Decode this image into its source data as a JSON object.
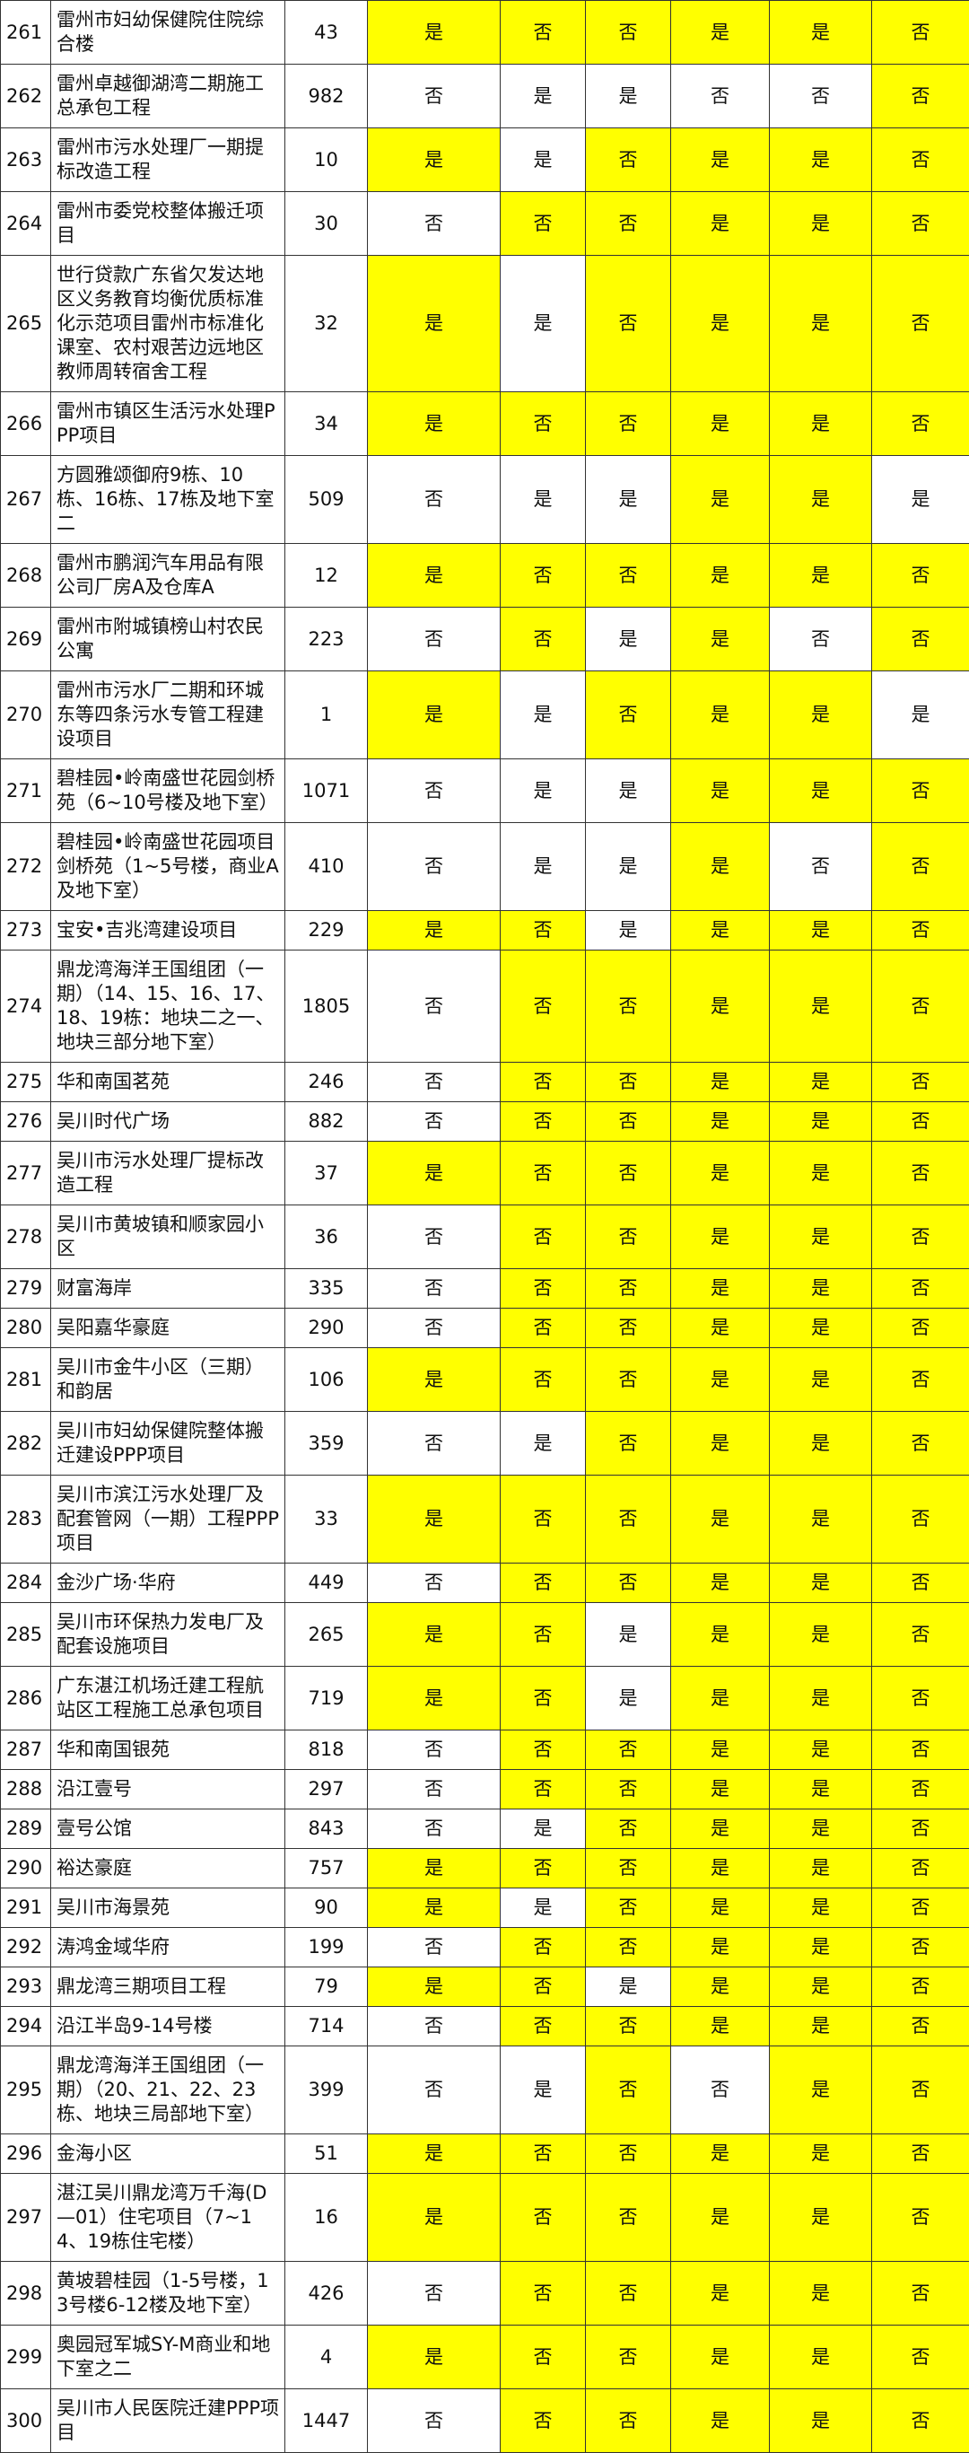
{
  "colors": {
    "highlight": "#ffff00",
    "plain": "#ffffff",
    "border": "#333333"
  },
  "rows": [
    {
      "no": "261",
      "name": "雷州市妇幼保健院住院综合楼",
      "count": "43",
      "vals": [
        "是",
        "否",
        "否",
        "是",
        "是",
        "否"
      ],
      "hl": [
        1,
        1,
        1,
        1,
        1,
        1
      ]
    },
    {
      "no": "262",
      "name": "雷州卓越御湖湾二期施工总承包工程",
      "count": "982",
      "vals": [
        "否",
        "是",
        "是",
        "否",
        "否",
        "否"
      ],
      "hl": [
        0,
        0,
        0,
        0,
        0,
        1
      ]
    },
    {
      "no": "263",
      "name": "雷州市污水处理厂一期提标改造工程",
      "count": "10",
      "vals": [
        "是",
        "是",
        "否",
        "是",
        "是",
        "否"
      ],
      "hl": [
        1,
        0,
        1,
        1,
        1,
        1
      ]
    },
    {
      "no": "264",
      "name": "雷州市委党校整体搬迁项目",
      "count": "30",
      "vals": [
        "否",
        "否",
        "否",
        "是",
        "是",
        "否"
      ],
      "hl": [
        0,
        1,
        1,
        1,
        1,
        1
      ]
    },
    {
      "no": "265",
      "name": "世行贷款广东省欠发达地区义务教育均衡优质标准化示范项目雷州市标准化课室、农村艰苦边远地区教师周转宿舍工程",
      "count": "32",
      "vals": [
        "是",
        "是",
        "否",
        "是",
        "是",
        "否"
      ],
      "hl": [
        1,
        0,
        1,
        1,
        1,
        1
      ]
    },
    {
      "no": "266",
      "name": "雷州市镇区生活污水处理PPP项目",
      "count": "34",
      "vals": [
        "是",
        "否",
        "否",
        "是",
        "是",
        "否"
      ],
      "hl": [
        1,
        1,
        1,
        1,
        1,
        1
      ]
    },
    {
      "no": "267",
      "name": "方圆雅颂御府9栋、10栋、16栋、17栋及地下室二",
      "count": "509",
      "vals": [
        "否",
        "是",
        "是",
        "是",
        "是",
        "是"
      ],
      "hl": [
        0,
        0,
        0,
        1,
        1,
        0
      ]
    },
    {
      "no": "268",
      "name": "雷州市鹏润汽车用品有限公司厂房A及仓库A",
      "count": "12",
      "vals": [
        "是",
        "否",
        "否",
        "是",
        "是",
        "否"
      ],
      "hl": [
        1,
        1,
        1,
        1,
        1,
        1
      ]
    },
    {
      "no": "269",
      "name": "雷州市附城镇榜山村农民公寓",
      "count": "223",
      "vals": [
        "否",
        "否",
        "是",
        "是",
        "否",
        "否"
      ],
      "hl": [
        0,
        1,
        0,
        1,
        0,
        1
      ]
    },
    {
      "no": "270",
      "name": "雷州市污水厂二期和环城东等四条污水专管工程建设项目",
      "count": "1",
      "vals": [
        "是",
        "是",
        "否",
        "是",
        "是",
        "是"
      ],
      "hl": [
        1,
        0,
        1,
        1,
        1,
        0
      ]
    },
    {
      "no": "271",
      "name": "碧桂园•岭南盛世花园剑桥苑（6~10号楼及地下室）",
      "count": "1071",
      "vals": [
        "否",
        "是",
        "是",
        "是",
        "是",
        "否"
      ],
      "hl": [
        0,
        0,
        0,
        1,
        1,
        1
      ]
    },
    {
      "no": "272",
      "name": "碧桂园•岭南盛世花园项目剑桥苑（1~5号楼，商业A及地下室）",
      "count": "410",
      "vals": [
        "否",
        "是",
        "是",
        "是",
        "否",
        "否"
      ],
      "hl": [
        0,
        0,
        0,
        1,
        0,
        1
      ]
    },
    {
      "no": "273",
      "name": "宝安•吉兆湾建设项目",
      "count": "229",
      "vals": [
        "是",
        "否",
        "是",
        "是",
        "是",
        "否"
      ],
      "hl": [
        1,
        1,
        0,
        1,
        1,
        1
      ]
    },
    {
      "no": "274",
      "name": "鼎龙湾海洋王国组团（一期）（14、15、16、17、18、19栋：地块二之一、地块三部分地下室）",
      "count": "1805",
      "vals": [
        "否",
        "否",
        "否",
        "是",
        "是",
        "否"
      ],
      "hl": [
        0,
        1,
        1,
        1,
        1,
        1
      ]
    },
    {
      "no": "275",
      "name": "华和南国茗苑",
      "count": "246",
      "vals": [
        "否",
        "否",
        "否",
        "是",
        "是",
        "否"
      ],
      "hl": [
        0,
        1,
        1,
        1,
        1,
        1
      ]
    },
    {
      "no": "276",
      "name": "吴川时代广场",
      "count": "882",
      "vals": [
        "否",
        "否",
        "否",
        "是",
        "是",
        "否"
      ],
      "hl": [
        0,
        1,
        1,
        1,
        1,
        1
      ]
    },
    {
      "no": "277",
      "name": "吴川市污水处理厂提标改造工程",
      "count": "37",
      "vals": [
        "是",
        "否",
        "否",
        "是",
        "是",
        "否"
      ],
      "hl": [
        1,
        1,
        1,
        1,
        1,
        1
      ]
    },
    {
      "no": "278",
      "name": "吴川市黄坡镇和顺家园小区",
      "count": "36",
      "vals": [
        "否",
        "否",
        "否",
        "是",
        "是",
        "否"
      ],
      "hl": [
        0,
        1,
        1,
        1,
        1,
        1
      ]
    },
    {
      "no": "279",
      "name": "财富海岸",
      "count": "335",
      "vals": [
        "否",
        "否",
        "否",
        "是",
        "是",
        "否"
      ],
      "hl": [
        0,
        1,
        1,
        1,
        1,
        1
      ]
    },
    {
      "no": "280",
      "name": "吴阳嘉华豪庭",
      "count": "290",
      "vals": [
        "否",
        "否",
        "否",
        "是",
        "是",
        "否"
      ],
      "hl": [
        0,
        1,
        1,
        1,
        1,
        1
      ]
    },
    {
      "no": "281",
      "name": "吴川市金牛小区（三期）和韵居",
      "count": "106",
      "vals": [
        "是",
        "否",
        "否",
        "是",
        "是",
        "否"
      ],
      "hl": [
        1,
        1,
        1,
        1,
        1,
        1
      ]
    },
    {
      "no": "282",
      "name": "吴川市妇幼保健院整体搬迁建设PPP项目",
      "count": "359",
      "vals": [
        "否",
        "是",
        "否",
        "是",
        "是",
        "否"
      ],
      "hl": [
        0,
        0,
        1,
        1,
        1,
        1
      ]
    },
    {
      "no": "283",
      "name": "吴川市滨江污水处理厂及配套管网（一期）工程PPP项目",
      "count": "33",
      "vals": [
        "是",
        "否",
        "否",
        "是",
        "是",
        "否"
      ],
      "hl": [
        1,
        1,
        1,
        1,
        1,
        1
      ]
    },
    {
      "no": "284",
      "name": "金沙广场·华府",
      "count": "449",
      "vals": [
        "否",
        "否",
        "否",
        "是",
        "是",
        "否"
      ],
      "hl": [
        0,
        1,
        1,
        1,
        1,
        1
      ]
    },
    {
      "no": "285",
      "name": "吴川市环保热力发电厂及配套设施项目",
      "count": "265",
      "vals": [
        "是",
        "否",
        "是",
        "是",
        "是",
        "否"
      ],
      "hl": [
        1,
        1,
        0,
        1,
        1,
        1
      ]
    },
    {
      "no": "286",
      "name": "广东湛江机场迁建工程航站区工程施工总承包项目",
      "count": "719",
      "vals": [
        "是",
        "否",
        "是",
        "是",
        "是",
        "否"
      ],
      "hl": [
        1,
        1,
        0,
        1,
        1,
        1
      ]
    },
    {
      "no": "287",
      "name": "华和南国银苑",
      "count": "818",
      "vals": [
        "否",
        "否",
        "否",
        "是",
        "是",
        "否"
      ],
      "hl": [
        0,
        1,
        1,
        1,
        1,
        1
      ]
    },
    {
      "no": "288",
      "name": "沿江壹号",
      "count": "297",
      "vals": [
        "否",
        "否",
        "否",
        "是",
        "是",
        "否"
      ],
      "hl": [
        0,
        1,
        1,
        1,
        1,
        1
      ]
    },
    {
      "no": "289",
      "name": "壹号公馆",
      "count": "843",
      "vals": [
        "否",
        "是",
        "否",
        "是",
        "是",
        "否"
      ],
      "hl": [
        0,
        0,
        1,
        1,
        1,
        1
      ]
    },
    {
      "no": "290",
      "name": "裕达豪庭",
      "count": "757",
      "vals": [
        "是",
        "否",
        "否",
        "是",
        "是",
        "否"
      ],
      "hl": [
        1,
        1,
        1,
        1,
        1,
        1
      ]
    },
    {
      "no": "291",
      "name": "吴川市海景苑",
      "count": "90",
      "vals": [
        "是",
        "是",
        "否",
        "是",
        "是",
        "否"
      ],
      "hl": [
        1,
        0,
        1,
        1,
        1,
        1
      ]
    },
    {
      "no": "292",
      "name": "涛鸿金域华府",
      "count": "199",
      "vals": [
        "否",
        "否",
        "否",
        "是",
        "是",
        "否"
      ],
      "hl": [
        0,
        1,
        1,
        1,
        1,
        1
      ]
    },
    {
      "no": "293",
      "name": "鼎龙湾三期项目工程",
      "count": "79",
      "vals": [
        "是",
        "否",
        "是",
        "是",
        "是",
        "否"
      ],
      "hl": [
        1,
        1,
        0,
        1,
        1,
        1
      ]
    },
    {
      "no": "294",
      "name": "沿江半岛9-14号楼",
      "count": "714",
      "vals": [
        "否",
        "否",
        "否",
        "是",
        "是",
        "否"
      ],
      "hl": [
        0,
        1,
        1,
        1,
        1,
        1
      ]
    },
    {
      "no": "295",
      "name": "鼎龙湾海洋王国组团（一期）（20、21、22、23栋、地块三局部地下室）",
      "count": "399",
      "vals": [
        "否",
        "是",
        "否",
        "否",
        "是",
        "否"
      ],
      "hl": [
        0,
        0,
        1,
        0,
        1,
        1
      ]
    },
    {
      "no": "296",
      "name": "金海小区",
      "count": "51",
      "vals": [
        "是",
        "否",
        "否",
        "是",
        "是",
        "否"
      ],
      "hl": [
        1,
        1,
        1,
        1,
        1,
        1
      ]
    },
    {
      "no": "297",
      "name": "湛江吴川鼎龙湾万千海(D—01）住宅项目（7~14、19栋住宅楼）",
      "count": "16",
      "vals": [
        "是",
        "否",
        "否",
        "是",
        "是",
        "否"
      ],
      "hl": [
        1,
        1,
        1,
        1,
        1,
        1
      ]
    },
    {
      "no": "298",
      "name": "黄坡碧桂园（1-5号楼，13号楼6-12楼及地下室）",
      "count": "426",
      "vals": [
        "否",
        "否",
        "否",
        "是",
        "是",
        "否"
      ],
      "hl": [
        0,
        1,
        1,
        1,
        1,
        1
      ]
    },
    {
      "no": "299",
      "name": "奥园冠军城SY-M商业和地下室之二",
      "count": "4",
      "vals": [
        "是",
        "否",
        "否",
        "是",
        "是",
        "否"
      ],
      "hl": [
        1,
        1,
        1,
        1,
        1,
        1
      ]
    },
    {
      "no": "300",
      "name": "吴川市人民医院迁建PPP项目",
      "count": "1447",
      "vals": [
        "否",
        "否",
        "否",
        "是",
        "是",
        "否"
      ],
      "hl": [
        0,
        1,
        1,
        1,
        1,
        1
      ]
    }
  ]
}
